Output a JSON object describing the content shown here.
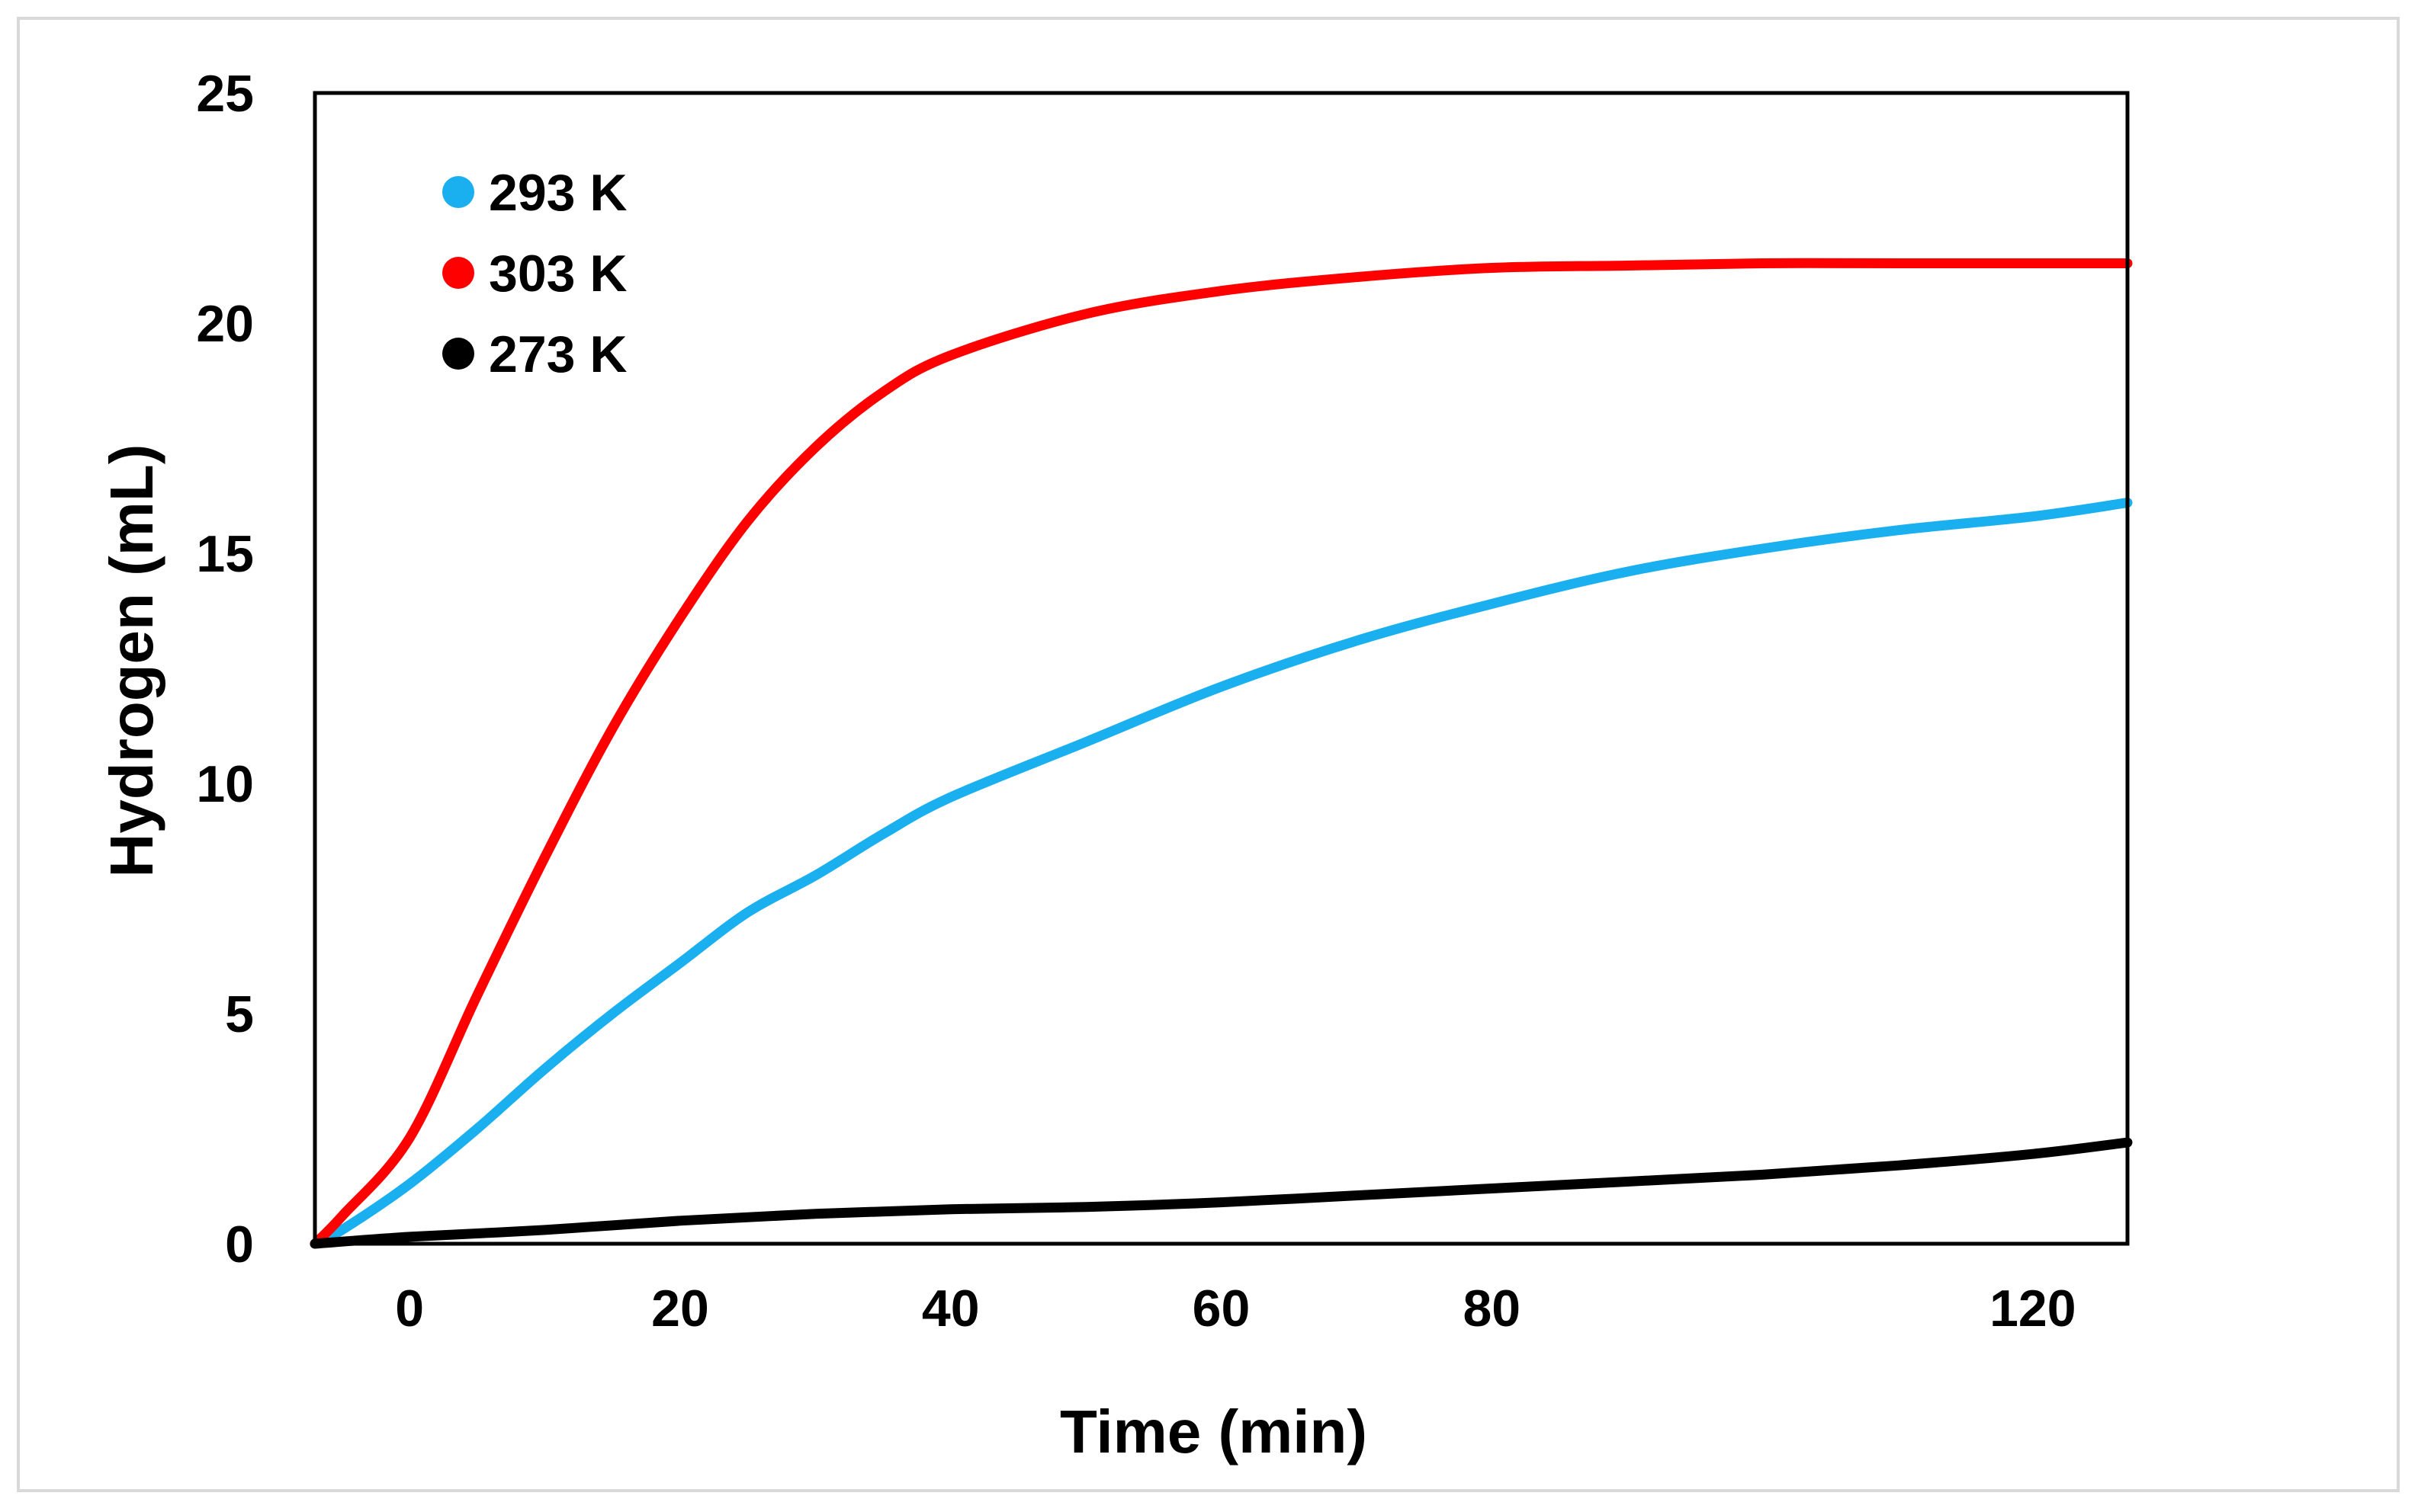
{
  "chart_data": {
    "type": "line",
    "title": "",
    "xlabel": "Time (min)",
    "ylabel": "Hydrogen (mL)",
    "xlim": [
      -7,
      127
    ],
    "ylim": [
      0,
      25
    ],
    "x_ticks": [
      0,
      20,
      40,
      60,
      80,
      120
    ],
    "y_ticks": [
      0,
      5,
      10,
      15,
      20,
      25
    ],
    "legend_position": "top-left",
    "series": [
      {
        "name": "293 K",
        "color": "#1ab0ef",
        "x": [
          -7,
          -5,
          0,
          5,
          10,
          15,
          20,
          25,
          30,
          35,
          40,
          50,
          60,
          70,
          80,
          90,
          100,
          110,
          120,
          127
        ],
        "y": [
          0,
          0.3,
          1.3,
          2.5,
          3.8,
          5.0,
          6.1,
          7.2,
          8.0,
          8.9,
          9.7,
          10.9,
          12.1,
          13.1,
          13.9,
          14.6,
          15.1,
          15.5,
          15.8,
          16.1
        ]
      },
      {
        "name": "303 K",
        "color": "#ff0000",
        "x": [
          -7,
          -5,
          0,
          5,
          10,
          15,
          20,
          25,
          30,
          35,
          40,
          50,
          60,
          70,
          80,
          90,
          100,
          110,
          120,
          127
        ],
        "y": [
          0,
          0.6,
          2.3,
          5.4,
          8.4,
          11.2,
          13.6,
          15.7,
          17.3,
          18.5,
          19.3,
          20.2,
          20.7,
          21.0,
          21.2,
          21.25,
          21.3,
          21.3,
          21.3,
          21.3
        ]
      },
      {
        "name": "273 K",
        "color": "#000000",
        "x": [
          -7,
          0,
          10,
          20,
          30,
          40,
          50,
          60,
          70,
          80,
          90,
          100,
          110,
          120,
          127
        ],
        "y": [
          0,
          0.15,
          0.3,
          0.5,
          0.65,
          0.75,
          0.8,
          0.9,
          1.05,
          1.2,
          1.35,
          1.5,
          1.7,
          1.95,
          2.2
        ]
      }
    ]
  }
}
